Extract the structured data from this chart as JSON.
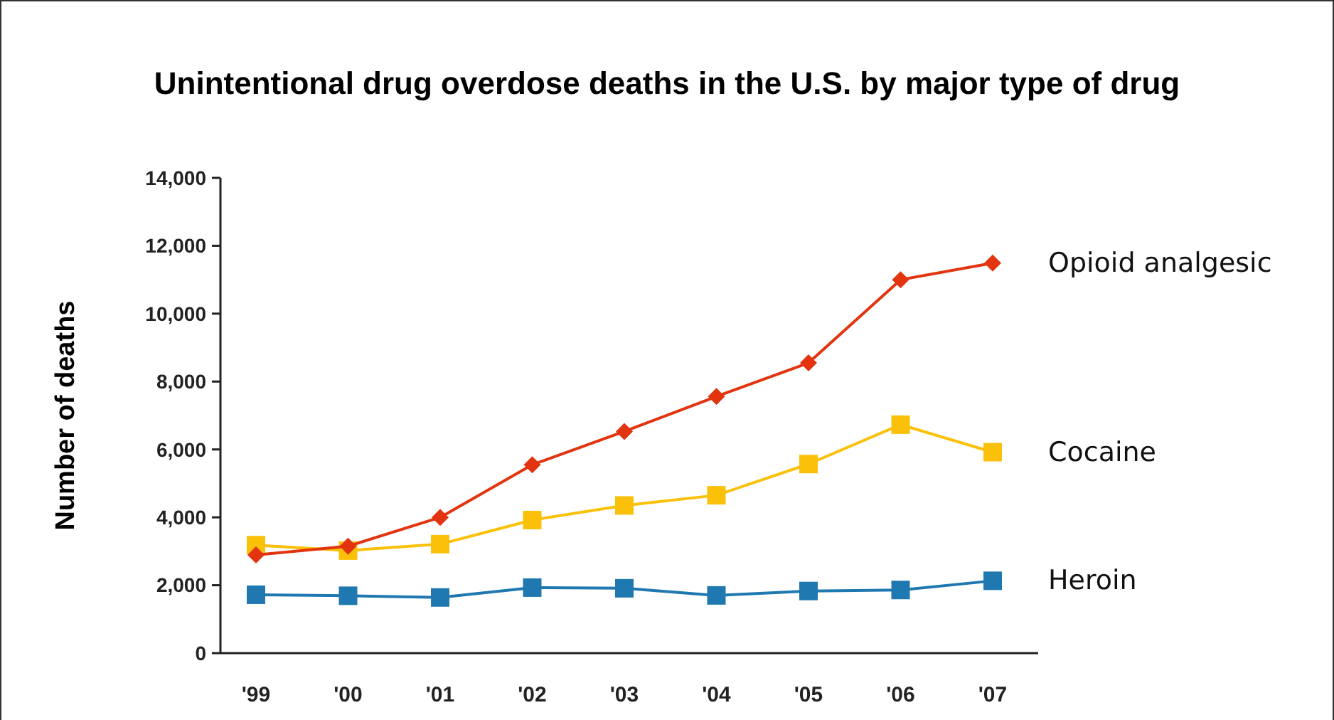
{
  "chart_data": {
    "type": "line",
    "title": "Unintentional drug overdose deaths  in the U.S. by major type of drug",
    "ylabel": "Number of deaths",
    "categories": [
      "'99",
      "'00",
      "'01",
      "'02",
      "'03",
      "'04",
      "'05",
      "'06",
      "'07"
    ],
    "ylim": [
      0,
      14000
    ],
    "yticks": [
      {
        "value": 0,
        "label": "0"
      },
      {
        "value": 2000,
        "label": "2,000"
      },
      {
        "value": 4000,
        "label": "4,000"
      },
      {
        "value": 6000,
        "label": "6,000"
      },
      {
        "value": 8000,
        "label": "8,000"
      },
      {
        "value": 10000,
        "label": "10,000"
      },
      {
        "value": 12000,
        "label": "12,000"
      },
      {
        "value": 14000,
        "label": "14,000"
      }
    ],
    "grid": false,
    "series": [
      {
        "name": "Opioid analgesic",
        "color": "#e2340f",
        "marker": "diamond",
        "values": [
          2890,
          3150,
          4000,
          5550,
          6530,
          7560,
          8550,
          11000,
          11490
        ]
      },
      {
        "name": "Cocaine",
        "color": "#fbc10a",
        "marker": "square",
        "values": [
          3180,
          3020,
          3210,
          3920,
          4350,
          4650,
          5570,
          6730,
          5920
        ]
      },
      {
        "name": "Heroin",
        "color": "#1f78b0",
        "marker": "square",
        "values": [
          1720,
          1690,
          1640,
          1930,
          1910,
          1700,
          1830,
          1860,
          2130
        ]
      }
    ]
  }
}
